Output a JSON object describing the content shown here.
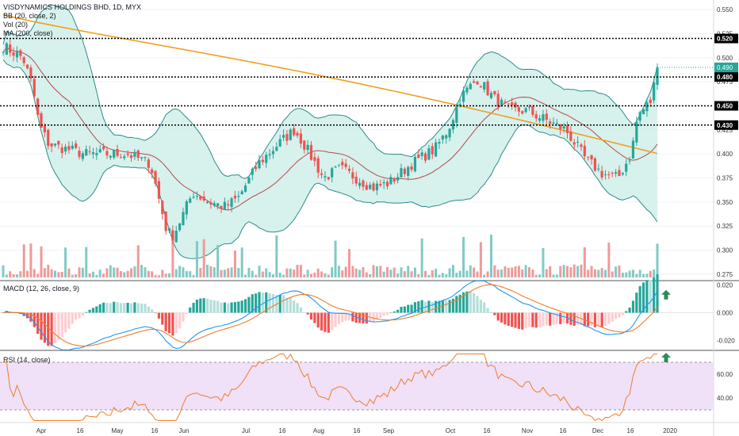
{
  "legend": {
    "title": "VISDYNAMICS HOLDINGS BHD, 1D, MYX",
    "bb": "BB (20, close, 2)",
    "vol": "Vol (20)",
    "ma": "MA (200, close)",
    "macd": "MACD (12, 26, close, 9)",
    "rsi": "RSI (14, close)"
  },
  "colors": {
    "up": "#26a69a",
    "down": "#ef5350",
    "vol_up": "#80cbc4",
    "vol_down": "#ef9a9a",
    "bb_line": "#2e8b8b",
    "bb_fill": "#cdeee9",
    "ma200": "#f0a020",
    "bb_mid": "#b44a4a",
    "macd_line": "#2196f3",
    "signal_line": "#f07d2a",
    "rsi_line": "#f07d2a",
    "rsi_band": "#f0e0f8",
    "arrow": "#2e8b57"
  },
  "chart_data": [
    {
      "type": "candlestick",
      "panel": "price",
      "y_ticks": [
        "0.275",
        "0.300",
        "0.325",
        "0.350",
        "0.375",
        "0.400",
        "0.425",
        "0.450",
        "0.475",
        "0.500",
        "0.525",
        "0.550"
      ],
      "ylim": [
        0.27,
        0.56
      ],
      "level_lines": [
        0.52,
        0.48,
        0.45,
        0.43
      ],
      "level_labels": [
        "0.520",
        "0.480",
        "0.450",
        "0.430"
      ],
      "last_price": 0.49,
      "last_price_label": "0.490",
      "x_labels": [
        "Apr",
        "16",
        "May",
        "16",
        "Jun",
        "Jul",
        "16",
        "Aug",
        "16",
        "Sep",
        "Oct",
        "16",
        "Nov",
        "16",
        "Dec",
        "16",
        "2020"
      ],
      "approx_levels": {
        "upper_band_peak": 0.555,
        "lower_band_trough": 0.295,
        "ma200_start": 0.545,
        "ma200_end": 0.4,
        "low_close": 0.31,
        "autumn_high": 0.48
      }
    },
    {
      "type": "bar",
      "panel": "volume",
      "note": "volume histogram overlaid at bottom of price panel"
    },
    {
      "type": "line",
      "panel": "macd",
      "y_ticks": [
        "0.020",
        "0.000",
        "-0.020"
      ],
      "ylim": [
        -0.026,
        0.022
      ]
    },
    {
      "type": "line",
      "panel": "rsi",
      "y_ticks": [
        "60.00",
        "40.00"
      ],
      "band": [
        30,
        70
      ],
      "ylim": [
        20,
        78
      ]
    }
  ]
}
